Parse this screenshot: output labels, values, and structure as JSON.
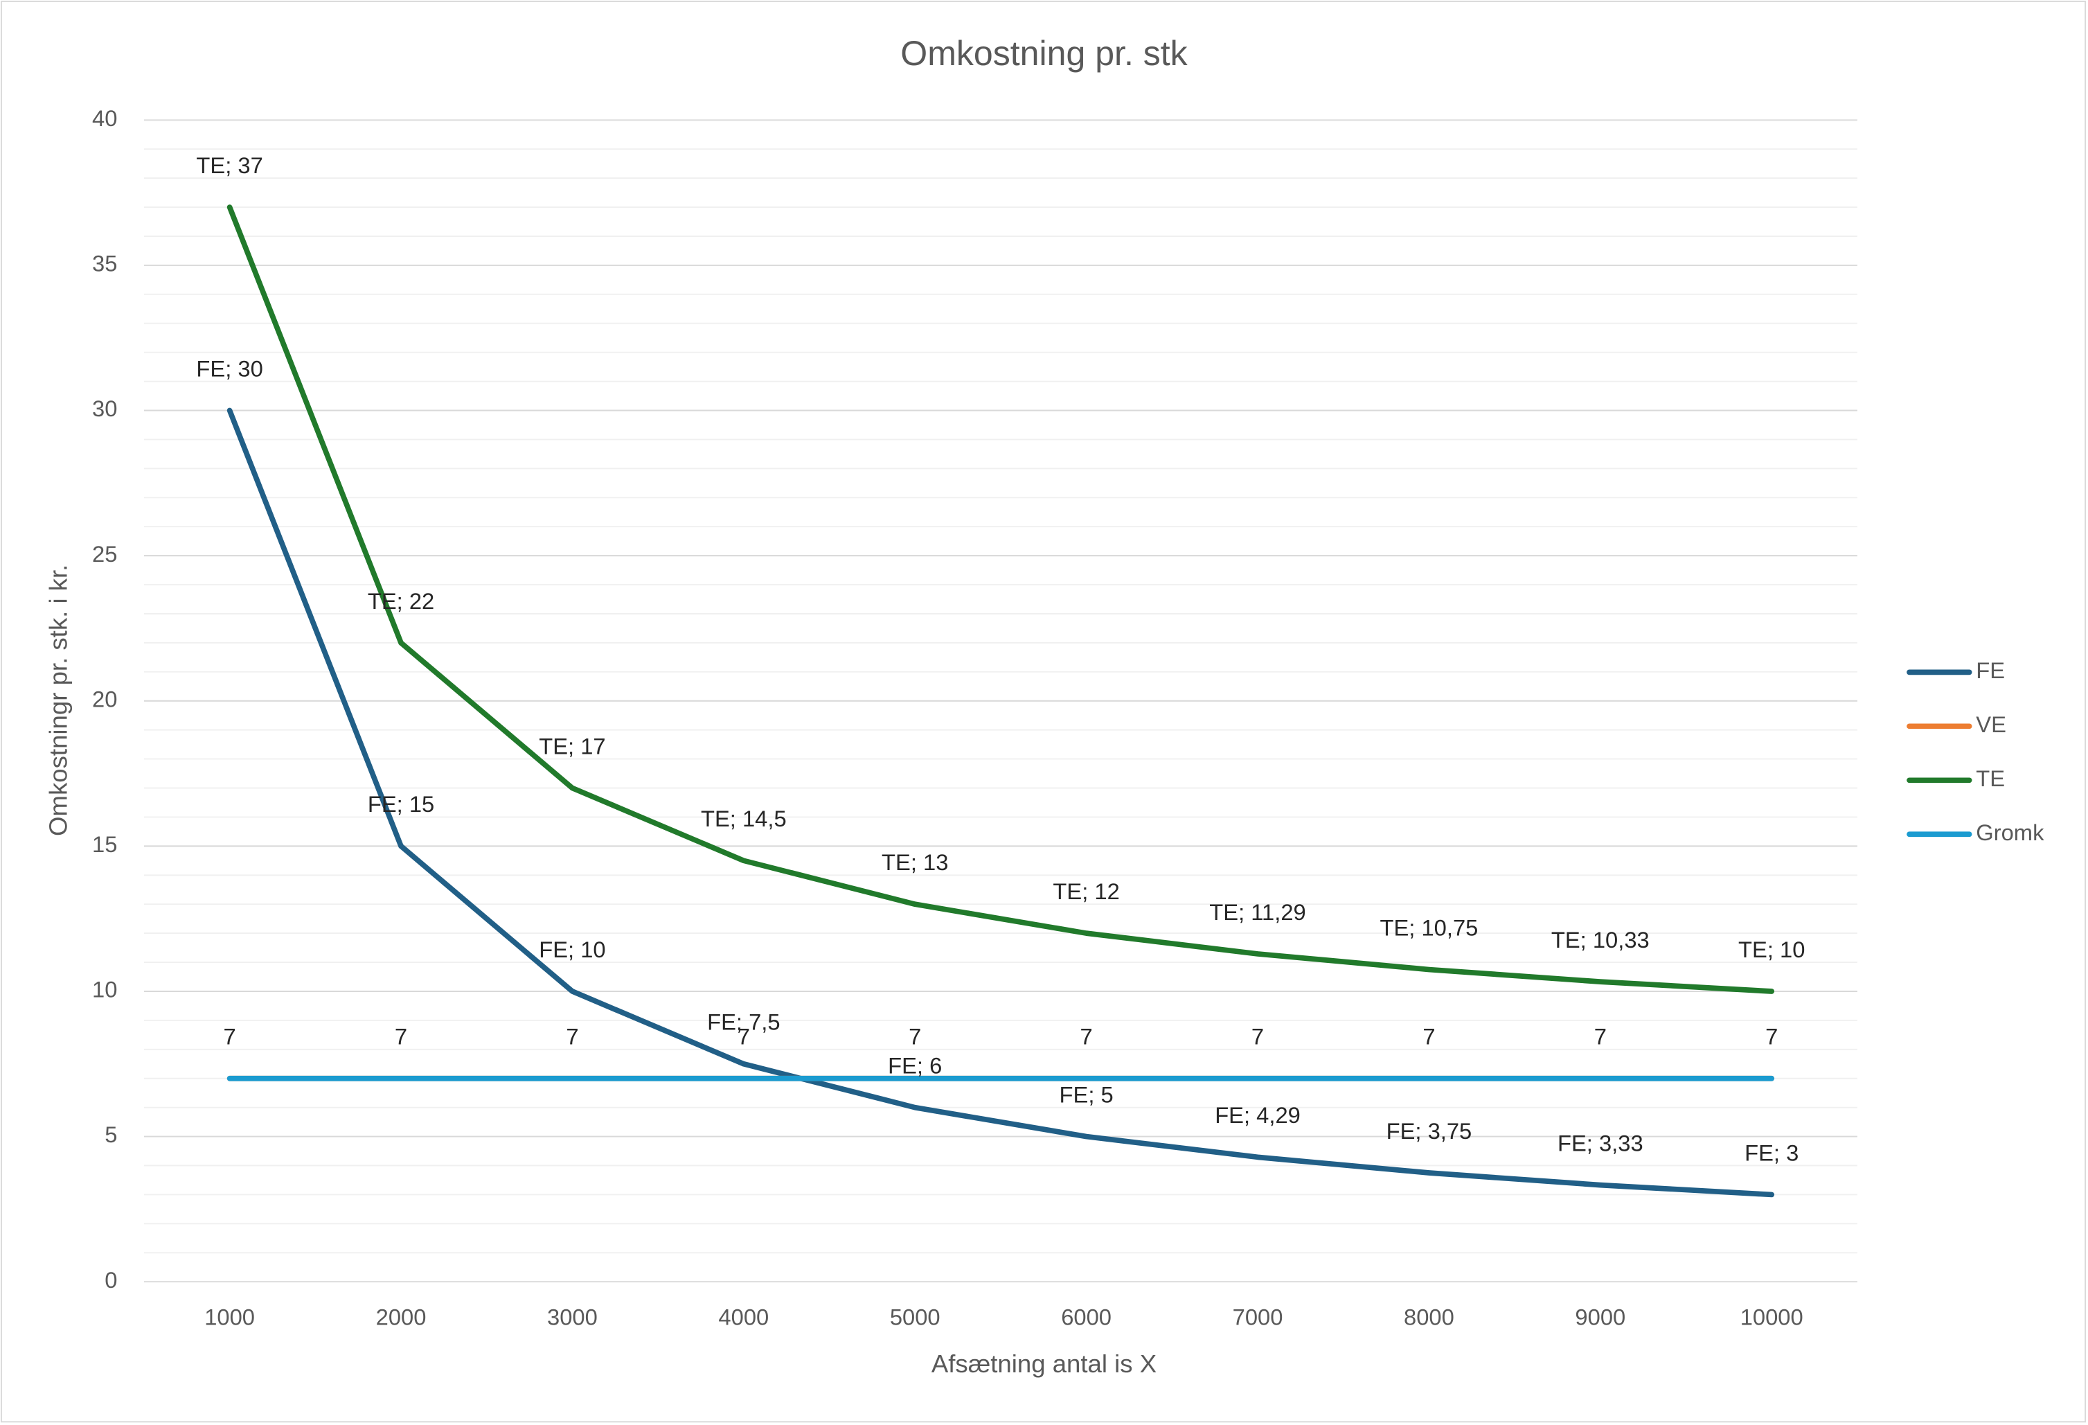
{
  "chart_data": {
    "type": "line",
    "title": "Omkostning pr. stk",
    "x_label": "Afsætning antal is X",
    "y_label": "Omkostningr pr. stk. i kr.",
    "categories": [
      "1000",
      "2000",
      "3000",
      "4000",
      "5000",
      "6000",
      "7000",
      "8000",
      "9000",
      "10000"
    ],
    "ylim": [
      0,
      40
    ],
    "yticks": [
      0,
      5,
      10,
      15,
      20,
      25,
      30,
      35,
      40
    ],
    "grid": true,
    "minor_grid": true,
    "legend": "right",
    "series": [
      {
        "name": "FE",
        "color": "#215f87",
        "values": [
          30,
          15,
          10,
          7.5,
          6,
          5,
          4.29,
          3.75,
          3.33,
          3
        ],
        "value_labels": [
          "FE; 30",
          "FE; 15",
          "FE; 10",
          "FE; 7,5",
          "FE; 6",
          "FE; 5",
          "FE; 4,29",
          "FE; 3,75",
          "FE; 3,33",
          "FE; 3"
        ]
      },
      {
        "name": "VE",
        "color": "#ed7d31",
        "values": [
          7,
          7,
          7,
          7,
          7,
          7,
          7,
          7,
          7,
          7
        ],
        "data_labels": true
      },
      {
        "name": "TE",
        "color": "#217a2b",
        "values": [
          37,
          22,
          17,
          14.5,
          13,
          12,
          11.29,
          10.75,
          10.33,
          10
        ],
        "value_labels": [
          "TE; 37",
          "TE; 22",
          "TE; 17",
          "TE; 14,5",
          "TE; 13",
          "TE; 12",
          "TE; 11,29",
          "TE; 10,75",
          "TE; 10,33",
          "TE; 10"
        ]
      },
      {
        "name": "Gromk",
        "color": "#1b9bd0",
        "values": [
          7,
          7,
          7,
          7,
          7,
          7,
          7,
          7,
          7,
          7
        ]
      }
    ]
  }
}
